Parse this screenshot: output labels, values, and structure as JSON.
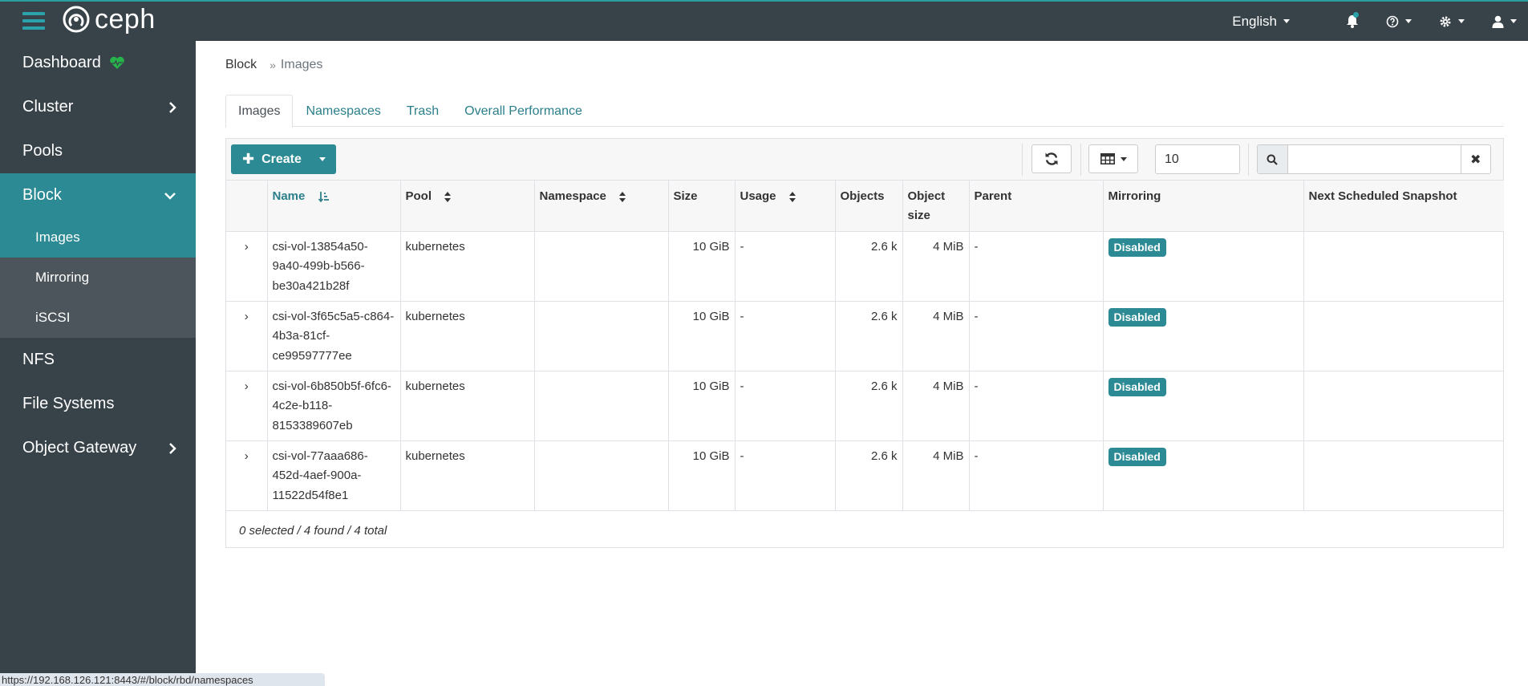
{
  "app": {
    "name": "ceph",
    "language": "English"
  },
  "sidebar": {
    "items": [
      {
        "label": "Dashboard"
      },
      {
        "label": "Cluster"
      },
      {
        "label": "Pools"
      },
      {
        "label": "Block"
      },
      {
        "label": "NFS"
      },
      {
        "label": "File Systems"
      },
      {
        "label": "Object Gateway"
      }
    ],
    "block_subitems": [
      {
        "label": "Images"
      },
      {
        "label": "Mirroring"
      },
      {
        "label": "iSCSI"
      }
    ]
  },
  "breadcrumb": {
    "parent": "Block",
    "separator": "»",
    "current": "Images"
  },
  "tabs": [
    {
      "label": "Images"
    },
    {
      "label": "Namespaces"
    },
    {
      "label": "Trash"
    },
    {
      "label": "Overall Performance"
    }
  ],
  "toolbar": {
    "create_label": "Create",
    "limit_value": "10",
    "search_value": "",
    "clear_label": "✖"
  },
  "table": {
    "columns": [
      "Name",
      "Pool",
      "Namespace",
      "Size",
      "Usage",
      "Objects",
      "Object size",
      "Parent",
      "Mirroring",
      "Next Scheduled Snapshot"
    ],
    "expand_glyph": "›",
    "rows": [
      {
        "name": "csi-vol-13854a50-9a40-499b-b566-be30a421b28f",
        "pool": "kubernetes",
        "namespace": "",
        "size": "10 GiB",
        "usage": "-",
        "objects": "2.6 k",
        "object_size": "4 MiB",
        "parent": "-",
        "mirroring": "Disabled",
        "next_snapshot": ""
      },
      {
        "name": "csi-vol-3f65c5a5-c864-4b3a-81cf-ce99597777ee",
        "pool": "kubernetes",
        "namespace": "",
        "size": "10 GiB",
        "usage": "-",
        "objects": "2.6 k",
        "object_size": "4 MiB",
        "parent": "-",
        "mirroring": "Disabled",
        "next_snapshot": ""
      },
      {
        "name": "csi-vol-6b850b5f-6fc6-4c2e-b118-8153389607eb",
        "pool": "kubernetes",
        "namespace": "",
        "size": "10 GiB",
        "usage": "-",
        "objects": "2.6 k",
        "object_size": "4 MiB",
        "parent": "-",
        "mirroring": "Disabled",
        "next_snapshot": ""
      },
      {
        "name": "csi-vol-77aaa686-452d-4aef-900a-11522d54f8e1",
        "pool": "kubernetes",
        "namespace": "",
        "size": "10 GiB",
        "usage": "-",
        "objects": "2.6 k",
        "object_size": "4 MiB",
        "parent": "-",
        "mirroring": "Disabled",
        "next_snapshot": ""
      }
    ],
    "footer": "0 selected / 4 found / 4 total"
  },
  "status_bar": {
    "url": "https://192.168.126.121:8443/#/block/rbd/namespaces"
  },
  "colors": {
    "accent": "#2b8a93",
    "topbar": "#374249",
    "health": "#26b34a"
  },
  "icons": [
    "hamburger-icon",
    "ceph-logo-icon",
    "bell-icon",
    "help-icon",
    "gear-icon",
    "user-icon",
    "heartbeat-icon",
    "chevron-right-icon",
    "chevron-down-icon",
    "plus-icon",
    "refresh-icon",
    "table-columns-icon",
    "search-icon",
    "close-icon",
    "sort-icon"
  ]
}
